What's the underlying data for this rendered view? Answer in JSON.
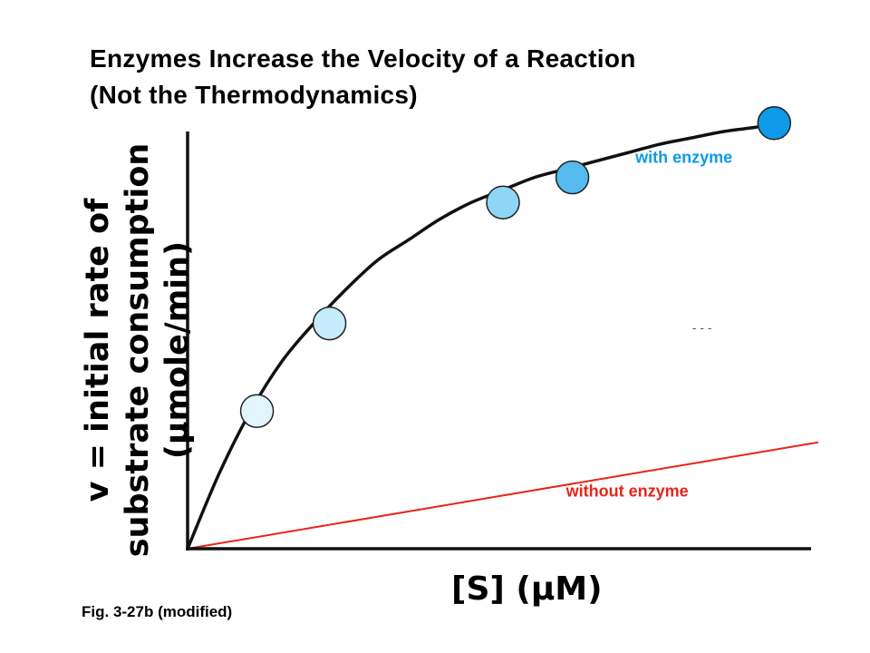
{
  "slide": {
    "title_lines": [
      "Enzymes Increase the Velocity of a Reaction",
      "(Not the Thermodynamics)"
    ],
    "caption": "Fig. 3-27b (modified)"
  },
  "chart_data": {
    "type": "line",
    "title": "",
    "ylabel_lines": [
      "v = initial rate of",
      "substrate consumption",
      "(μmole/min)"
    ],
    "xlabel": "[S] (μM)",
    "xlim": [
      0,
      1
    ],
    "ylim": [
      0,
      1
    ],
    "grid": false,
    "x_ticks_shown": false,
    "y_ticks_shown": false,
    "series": [
      {
        "name": "with enzyme",
        "color": "#0d9ae8",
        "line_color": "#111111",
        "x": [
          0,
          0.05,
          0.1,
          0.15,
          0.2,
          0.25,
          0.3,
          0.35,
          0.4,
          0.45,
          0.5,
          0.55,
          0.6,
          0.65,
          0.7,
          0.75,
          0.8,
          0.85,
          0.9,
          0.94
        ],
        "y": [
          0,
          0.18,
          0.33,
          0.45,
          0.54,
          0.62,
          0.69,
          0.74,
          0.79,
          0.83,
          0.86,
          0.89,
          0.91,
          0.93,
          0.95,
          0.97,
          0.985,
          1.0,
          1.01,
          1.02
        ],
        "markers": {
          "x": [
            0.11,
            0.225,
            0.5,
            0.61,
            0.93
          ],
          "y": [
            0.33,
            0.54,
            0.83,
            0.89,
            1.02
          ],
          "colors": [
            "#e3f5fc",
            "#c6ebfa",
            "#8fd6f6",
            "#55baee",
            "#0d9ae8"
          ]
        }
      },
      {
        "name": "without enzyme",
        "color": "#e8231a",
        "line_color": "#e8231a",
        "x": [
          0,
          1.0
        ],
        "y": [
          0,
          0.255
        ]
      }
    ],
    "annotations": [
      {
        "text": "- - -",
        "x": 0.8,
        "y": 0.52,
        "color": "#555555"
      }
    ]
  }
}
